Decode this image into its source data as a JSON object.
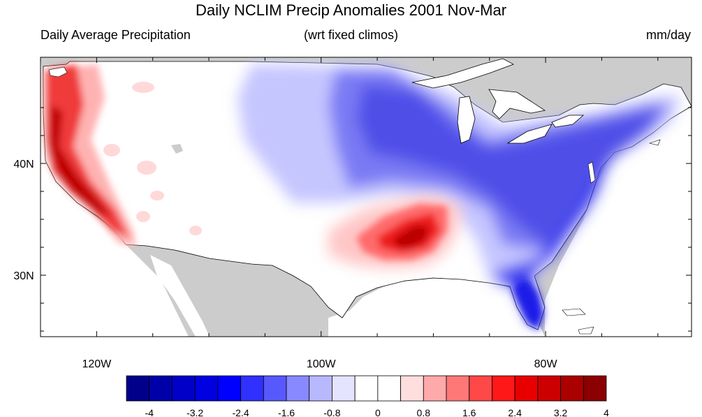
{
  "header": {
    "title": "Daily NCLIM Precip Anomalies 2001 Nov-Mar",
    "left_label": "Daily Average Precipitation",
    "center_label": "(wrt fixed climos)",
    "right_label": "mm/day"
  },
  "map": {
    "lon_range": [
      -125,
      -67
    ],
    "lat_range": [
      24.5,
      49.5
    ],
    "lon_ticks": [
      {
        "lon": -120,
        "label": "120W"
      },
      {
        "lon": -100,
        "label": "100W"
      },
      {
        "lon": -80,
        "label": "80W"
      }
    ],
    "lat_ticks": [
      {
        "lat": 30,
        "label": "30N"
      },
      {
        "lat": 40,
        "label": "40N"
      }
    ],
    "colors": {
      "land_outside": "#cccccc",
      "water": "#ffffff",
      "outline": "#000000"
    }
  },
  "colorbar": {
    "colors": [
      "#00008b",
      "#0000a8",
      "#0000c8",
      "#0000e0",
      "#0000ff",
      "#3030ff",
      "#5858ff",
      "#8888ff",
      "#b8b8ff",
      "#e4e4ff",
      "#ffffff",
      "#ffffff",
      "#ffdede",
      "#ffaaaa",
      "#ff7878",
      "#ff4848",
      "#ff1818",
      "#e80000",
      "#cc0000",
      "#aa0000",
      "#8b0000"
    ],
    "labels": [
      "-4",
      "-3.2",
      "-2.4",
      "-1.6",
      "-0.8",
      "0",
      "0.8",
      "1.6",
      "2.4",
      "3.2",
      "4"
    ]
  }
}
